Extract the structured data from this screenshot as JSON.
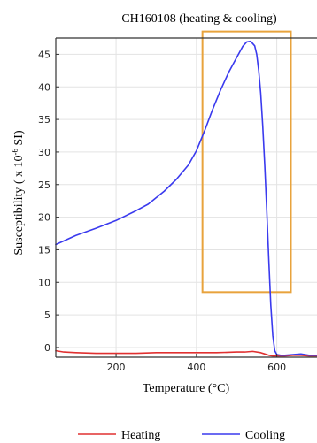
{
  "chart_data": {
    "type": "line",
    "title": "CH160108 (heating & cooling)",
    "xlabel": "Temperature (°C)",
    "ylabel_main": "Susceptibility ( x 10",
    "ylabel_exp": "-6",
    "ylabel_tail": " SI)",
    "xlim": [
      50,
      700
    ],
    "ylim": [
      -1.5,
      47.5
    ],
    "xticks": [
      200,
      400,
      600
    ],
    "yticks": [
      0,
      5,
      10,
      15,
      20,
      25,
      30,
      35,
      40,
      45
    ],
    "grid": true,
    "legend_position": "bottom",
    "highlight_box": {
      "x": [
        415,
        635
      ],
      "y": [
        8.5,
        48.5
      ],
      "color": "#e8a33c"
    },
    "series": [
      {
        "name": "Heating",
        "color": "#e03030",
        "x": [
          50,
          70,
          100,
          150,
          200,
          250,
          300,
          350,
          400,
          450,
          500,
          520,
          540,
          560,
          570,
          580,
          590,
          600,
          620,
          640,
          660,
          680,
          700
        ],
        "y": [
          -0.5,
          -0.7,
          -0.8,
          -0.9,
          -0.9,
          -0.9,
          -0.8,
          -0.8,
          -0.8,
          -0.8,
          -0.7,
          -0.7,
          -0.6,
          -0.8,
          -1.0,
          -1.2,
          -1.3,
          -1.3,
          -1.3,
          -1.2,
          -1.2,
          -1.3,
          -1.3
        ]
      },
      {
        "name": "Cooling",
        "color": "#3a3aee",
        "x": [
          50,
          100,
          150,
          200,
          250,
          280,
          300,
          320,
          350,
          380,
          400,
          420,
          440,
          460,
          480,
          500,
          515,
          525,
          535,
          545,
          550,
          555,
          560,
          565,
          570,
          575,
          580,
          585,
          590,
          595,
          600,
          610,
          620,
          640,
          660,
          680,
          700
        ],
        "y": [
          15.8,
          17.2,
          18.3,
          19.5,
          21.0,
          22.0,
          23.0,
          24.0,
          25.8,
          28.0,
          30.2,
          33.2,
          36.5,
          39.5,
          42.2,
          44.5,
          46.2,
          46.9,
          47.0,
          46.3,
          45.0,
          42.5,
          39.0,
          34.0,
          28.0,
          21.0,
          13.5,
          6.5,
          1.8,
          -0.5,
          -1.1,
          -1.2,
          -1.2,
          -1.1,
          -1.0,
          -1.2,
          -1.2
        ]
      }
    ]
  }
}
